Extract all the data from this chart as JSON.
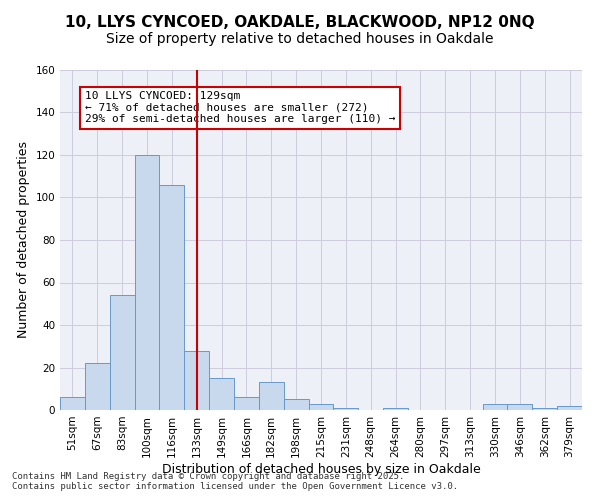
{
  "title_line1": "10, LLYS CYNCOED, OAKDALE, BLACKWOOD, NP12 0NQ",
  "title_line2": "Size of property relative to detached houses in Oakdale",
  "xlabel": "Distribution of detached houses by size in Oakdale",
  "ylabel": "Number of detached properties",
  "bin_labels": [
    "51sqm",
    "67sqm",
    "83sqm",
    "100sqm",
    "116sqm",
    "133sqm",
    "149sqm",
    "166sqm",
    "182sqm",
    "198sqm",
    "215sqm",
    "231sqm",
    "248sqm",
    "264sqm",
    "280sqm",
    "297sqm",
    "313sqm",
    "330sqm",
    "346sqm",
    "362sqm",
    "379sqm"
  ],
  "bar_heights": [
    6,
    22,
    54,
    120,
    106,
    28,
    15,
    6,
    13,
    5,
    3,
    1,
    0,
    1,
    0,
    0,
    0,
    3,
    3,
    1,
    2
  ],
  "bar_color": "#c8d9ed",
  "bar_edge_color": "#6699cc",
  "vline_x": 5,
  "vline_color": "#cc0000",
  "annotation_text": "10 LLYS CYNCOED: 129sqm\n← 71% of detached houses are smaller (272)\n29% of semi-detached houses are larger (110) →",
  "annotation_box_color": "#cc0000",
  "ylim": [
    0,
    160
  ],
  "yticks": [
    0,
    20,
    40,
    60,
    80,
    100,
    120,
    140,
    160
  ],
  "grid_color": "#ccccdd",
  "bg_color": "#eef0f8",
  "footer_text": "Contains HM Land Registry data © Crown copyright and database right 2025.\nContains public sector information licensed under the Open Government Licence v3.0.",
  "title_fontsize": 11,
  "axis_label_fontsize": 9,
  "tick_fontsize": 7.5,
  "annotation_fontsize": 8
}
